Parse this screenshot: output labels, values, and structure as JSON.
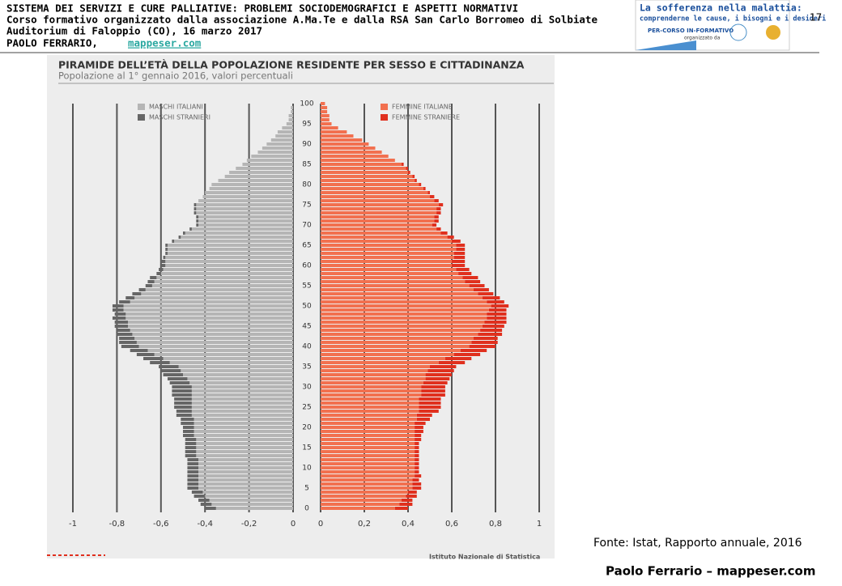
{
  "header": {
    "lines": [
      "SISTEMA DEI SERVIZI E CURE PALLIATIVE: PROBLEMI SOCIODEMOGRAFICI E ASPETTI NORMATIVI",
      "Corso formativo organizzato dalla associazione A.Ma.Te e dalla RSA San Carlo Borromeo di Solbiate",
      "Auditorium di Faloppio (CO), 16 marzo 2017"
    ],
    "author": "PAOLO FERRARIO,",
    "link": "mappeser.com"
  },
  "page_number": "17",
  "logo": {
    "title": "La sofferenza nella malattia:",
    "subtitle": "comprenderne le cause, i bisogni e i desideri",
    "course": "PER-CORSO IN-FORMATIVO",
    "organizer": "organizzato da"
  },
  "source": "Fonte: Istat, Rapporto annuale, 2016",
  "footer": "Paolo Ferrario – mappeser.com",
  "chart_source": "Istituto Nazionale di Statistica",
  "chart_data": [
    {
      "type": "bar",
      "orientation": "horizontal",
      "stacked": true,
      "title": "PIRAMIDE DELL’ETÀ DELLA POPOLAZIONE RESIDENTE PER SESSO E CITTADINANZA",
      "subtitle": "Popolazione al 1° gennaio 2016, valori percentuali",
      "categories": [
        0,
        null,
        null,
        null,
        null,
        5,
        null,
        null,
        null,
        null,
        10,
        null,
        null,
        null,
        null,
        15,
        null,
        null,
        null,
        null,
        20,
        null,
        null,
        null,
        null,
        25,
        null,
        null,
        null,
        null,
        30,
        null,
        null,
        null,
        null,
        35,
        null,
        null,
        null,
        null,
        40,
        null,
        null,
        null,
        null,
        45,
        null,
        null,
        null,
        null,
        50,
        null,
        null,
        null,
        null,
        55,
        null,
        null,
        null,
        null,
        60,
        null,
        null,
        null,
        null,
        65,
        null,
        null,
        null,
        null,
        70,
        null,
        null,
        null,
        null,
        75,
        null,
        null,
        null,
        null,
        80,
        null,
        null,
        null,
        null,
        85,
        null,
        null,
        null,
        null,
        90,
        null,
        null,
        null,
        null,
        95,
        null,
        null,
        null,
        null,
        100
      ],
      "xlim": [
        -1,
        0
      ],
      "xticks": [
        -1,
        {
          "value": -0.8,
          "label": "-0,8"
        },
        {
          "value": -0.6,
          "label": "-0,6"
        },
        {
          "value": -0.4,
          "label": "-0,4"
        },
        {
          "value": -0.2,
          "label": "-0,2"
        },
        0
      ],
      "grid": true,
      "series": [
        {
          "name": "MASCHI ITALIANI",
          "color": "#b5b5b5",
          "values": [
            -0.35,
            -0.37,
            -0.38,
            -0.4,
            -0.41,
            -0.43,
            -0.43,
            -0.43,
            -0.43,
            -0.43,
            -0.43,
            -0.43,
            -0.43,
            -0.44,
            -0.44,
            -0.44,
            -0.44,
            -0.44,
            -0.45,
            -0.45,
            -0.45,
            -0.45,
            -0.45,
            -0.46,
            -0.46,
            -0.46,
            -0.46,
            -0.46,
            -0.46,
            -0.46,
            -0.46,
            -0.47,
            -0.48,
            -0.5,
            -0.51,
            -0.52,
            -0.56,
            -0.59,
            -0.63,
            -0.66,
            -0.7,
            -0.71,
            -0.72,
            -0.73,
            -0.74,
            -0.75,
            -0.75,
            -0.76,
            -0.76,
            -0.77,
            -0.77,
            -0.74,
            -0.72,
            -0.69,
            -0.67,
            -0.64,
            -0.63,
            -0.62,
            -0.6,
            -0.59,
            -0.58,
            -0.58,
            -0.58,
            -0.57,
            -0.57,
            -0.57,
            -0.54,
            -0.51,
            -0.49,
            -0.46,
            -0.43,
            -0.43,
            -0.43,
            -0.44,
            -0.44,
            -0.44,
            -0.43,
            -0.41,
            -0.4,
            -0.38,
            -0.37,
            -0.34,
            -0.31,
            -0.29,
            -0.26,
            -0.23,
            -0.21,
            -0.19,
            -0.16,
            -0.14,
            -0.12,
            -0.1,
            -0.08,
            -0.07,
            -0.05,
            -0.03,
            -0.02,
            -0.02,
            -0.01,
            -0.01,
            0
          ]
        },
        {
          "name": "MASCHI STRANIERI",
          "color": "#666666",
          "values": [
            -0.05,
            -0.05,
            -0.05,
            -0.05,
            -0.05,
            -0.05,
            -0.05,
            -0.05,
            -0.05,
            -0.05,
            -0.05,
            -0.05,
            -0.05,
            -0.05,
            -0.05,
            -0.05,
            -0.05,
            -0.05,
            -0.05,
            -0.05,
            -0.05,
            -0.06,
            -0.06,
            -0.07,
            -0.07,
            -0.08,
            -0.08,
            -0.08,
            -0.09,
            -0.09,
            -0.09,
            -0.09,
            -0.09,
            -0.09,
            -0.09,
            -0.09,
            -0.09,
            -0.09,
            -0.08,
            -0.08,
            -0.08,
            -0.08,
            -0.07,
            -0.07,
            -0.06,
            -0.06,
            -0.06,
            -0.06,
            -0.05,
            -0.05,
            -0.05,
            -0.05,
            -0.04,
            -0.04,
            -0.03,
            -0.03,
            -0.03,
            -0.03,
            -0.02,
            -0.02,
            -0.02,
            -0.02,
            -0.01,
            -0.01,
            -0.01,
            -0.01,
            -0.01,
            -0.01,
            -0.01,
            -0.01,
            -0.01,
            -0.01,
            -0.01,
            -0.01,
            -0.01,
            -0.01,
            0,
            0,
            0,
            0,
            0,
            0,
            0,
            0,
            0,
            0,
            0,
            0,
            0,
            0,
            0,
            0,
            0,
            0,
            0,
            0,
            0,
            0,
            0,
            0,
            0
          ]
        }
      ]
    },
    {
      "type": "bar",
      "orientation": "horizontal",
      "stacked": true,
      "xlim": [
        0,
        1
      ],
      "xticks": [
        0,
        {
          "value": 0.2,
          "label": "0,2"
        },
        {
          "value": 0.4,
          "label": "0,4"
        },
        {
          "value": 0.6,
          "label": "0,6"
        },
        {
          "value": 0.8,
          "label": "0,8"
        },
        1
      ],
      "grid": true,
      "series": [
        {
          "name": "FEMMINE ITALIANE",
          "color": "#f2704f",
          "values": [
            0.34,
            0.36,
            0.37,
            0.39,
            0.4,
            0.42,
            0.42,
            0.42,
            0.43,
            0.43,
            0.43,
            0.43,
            0.43,
            0.43,
            0.43,
            0.43,
            0.43,
            0.43,
            0.43,
            0.43,
            0.43,
            0.43,
            0.44,
            0.44,
            0.45,
            0.45,
            0.45,
            0.45,
            0.46,
            0.46,
            0.46,
            0.47,
            0.48,
            0.48,
            0.49,
            0.5,
            0.54,
            0.57,
            0.61,
            0.64,
            0.68,
            0.69,
            0.7,
            0.72,
            0.73,
            0.74,
            0.75,
            0.76,
            0.76,
            0.77,
            0.78,
            0.76,
            0.74,
            0.72,
            0.7,
            0.68,
            0.66,
            0.65,
            0.63,
            0.62,
            0.6,
            0.6,
            0.61,
            0.61,
            0.62,
            0.62,
            0.6,
            0.58,
            0.55,
            0.53,
            0.51,
            0.52,
            0.52,
            0.53,
            0.53,
            0.54,
            0.52,
            0.5,
            0.49,
            0.47,
            0.45,
            0.43,
            0.42,
            0.4,
            0.39,
            0.37,
            0.34,
            0.31,
            0.28,
            0.25,
            0.22,
            0.19,
            0.15,
            0.12,
            0.08,
            0.05,
            0.04,
            0.04,
            0.03,
            0.03,
            0.02
          ]
        },
        {
          "name": "FEMMINE STRANIERE",
          "color": "#e0301e",
          "values": [
            0.06,
            0.06,
            0.05,
            0.05,
            0.04,
            0.04,
            0.04,
            0.03,
            0.03,
            0.02,
            0.02,
            0.02,
            0.02,
            0.02,
            0.02,
            0.02,
            0.02,
            0.03,
            0.03,
            0.04,
            0.04,
            0.05,
            0.06,
            0.07,
            0.09,
            0.1,
            0.1,
            0.1,
            0.11,
            0.11,
            0.11,
            0.11,
            0.11,
            0.12,
            0.12,
            0.12,
            0.12,
            0.12,
            0.12,
            0.12,
            0.12,
            0.12,
            0.11,
            0.11,
            0.1,
            0.1,
            0.1,
            0.09,
            0.09,
            0.08,
            0.08,
            0.08,
            0.08,
            0.07,
            0.07,
            0.07,
            0.07,
            0.07,
            0.06,
            0.06,
            0.06,
            0.06,
            0.05,
            0.05,
            0.04,
            0.04,
            0.04,
            0.03,
            0.03,
            0.02,
            0.02,
            0.02,
            0.02,
            0.02,
            0.02,
            0.02,
            0.02,
            0.02,
            0.01,
            0.01,
            0.01,
            0.01,
            0.01,
            0.01,
            0.01,
            0.01,
            0,
            0,
            0,
            0,
            0,
            0,
            0,
            0,
            0,
            0,
            0,
            0,
            0,
            0,
            0
          ]
        }
      ]
    }
  ]
}
